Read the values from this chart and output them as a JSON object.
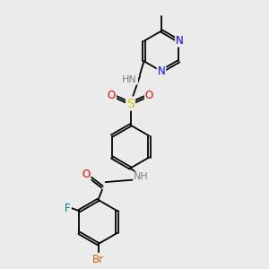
{
  "background_color": "#ebebeb",
  "bond_color": "#000000",
  "atom_colors": {
    "N": "#0000ff",
    "O": "#ff0000",
    "S": "#cccc00",
    "F": "#008080",
    "Br": "#cc6600",
    "H": "#808080",
    "C": "#000000"
  },
  "figsize": [
    3.0,
    3.0
  ],
  "dpi": 100
}
